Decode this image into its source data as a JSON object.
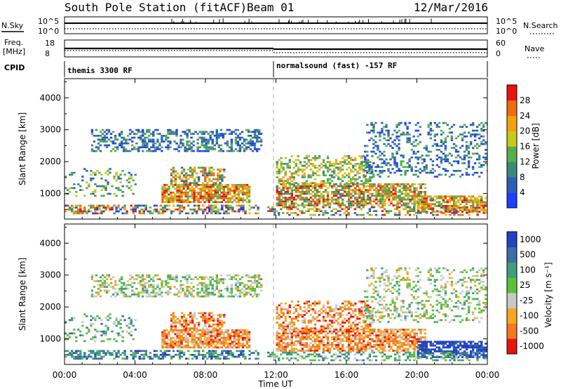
{
  "header": {
    "station": "South Pole Station (fitACF)",
    "beam": "Beam 01",
    "date": "12/Mar/2016"
  },
  "params": {
    "nsky_label": "N.Sky",
    "nsky_ticks": [
      "10^5",
      "10^0"
    ],
    "nsearch_label": "N.Search",
    "freq_label": [
      "Freq.",
      "[MHz]"
    ],
    "freq_ticks": [
      "18",
      "8"
    ],
    "nave_label": "Nave",
    "nave_ticks": [
      "60",
      "0"
    ],
    "cpid_label": "CPID",
    "cpid_segments": [
      "themis 3300 RF",
      "normalsound (fast) -157 RF"
    ]
  },
  "colors": {
    "power_scale": [
      "#1f3fff",
      "#2e5fb5",
      "#3a8a7a",
      "#55b04a",
      "#c8c81e",
      "#f5a012",
      "#f26a10",
      "#e8140f"
    ],
    "velocity_scale": [
      "#2142c2",
      "#3a6ea5",
      "#3f9e7f",
      "#5cc13a",
      "#c8c8c8",
      "#f6a623",
      "#f37a1c",
      "#e8140f"
    ]
  },
  "chart_data": [
    {
      "type": "heatmap",
      "name": "power",
      "ylabel": "Slant Range [km]",
      "yticks": [
        1000,
        2000,
        3000,
        4000
      ],
      "ylim": [
        200,
        4600
      ],
      "xlim_hours": [
        0,
        24
      ],
      "xticks": [
        "00:00",
        "04:00",
        "08:00",
        "12:00",
        "16:00",
        "20:00",
        "00:00"
      ],
      "colorbar_label": "Power [dB]",
      "colorbar_ticks": [
        4,
        8,
        12,
        16,
        20,
        24,
        28
      ]
    },
    {
      "type": "heatmap",
      "name": "velocity",
      "ylabel": "Slant Range [km]",
      "yticks": [
        1000,
        2000,
        3000,
        4000
      ],
      "ylim": [
        200,
        4600
      ],
      "xlim_hours": [
        0,
        24
      ],
      "xticks": [
        "00:00",
        "04:00",
        "08:00",
        "12:00",
        "16:00",
        "20:00",
        "00:00"
      ],
      "xlabel": "Time UT",
      "colorbar_label": "Velocity [m s⁻¹]",
      "colorbar_ticks": [
        "1000",
        "500",
        "100",
        "25",
        "-25",
        "-100",
        "-500",
        "-1000"
      ]
    }
  ]
}
